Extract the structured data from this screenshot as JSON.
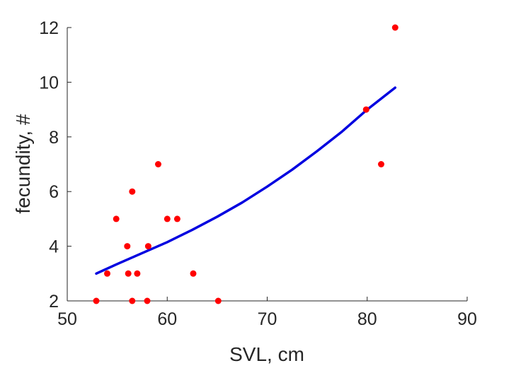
{
  "chart_data": {
    "type": "scatter",
    "title": "",
    "xlabel": "SVL, cm",
    "ylabel": "fecundity, #",
    "xlim": [
      50,
      90
    ],
    "ylim": [
      2,
      12
    ],
    "xticks": [
      50,
      60,
      70,
      80,
      90
    ],
    "yticks": [
      2,
      4,
      6,
      8,
      10,
      12
    ],
    "xtick_labels": [
      "50",
      "60",
      "70",
      "80",
      "90"
    ],
    "ytick_labels": [
      "2",
      "4",
      "6",
      "8",
      "10",
      "12"
    ],
    "grid": false,
    "series": [
      {
        "type": "scatter",
        "color": "#ff0000",
        "points": [
          {
            "x": 52.9,
            "y": 2
          },
          {
            "x": 54.0,
            "y": 3
          },
          {
            "x": 54.9,
            "y": 5
          },
          {
            "x": 56.0,
            "y": 4
          },
          {
            "x": 56.1,
            "y": 3
          },
          {
            "x": 56.5,
            "y": 6
          },
          {
            "x": 56.5,
            "y": 2
          },
          {
            "x": 57.0,
            "y": 3
          },
          {
            "x": 58.0,
            "y": 2
          },
          {
            "x": 58.1,
            "y": 4
          },
          {
            "x": 59.1,
            "y": 7
          },
          {
            "x": 60.0,
            "y": 5
          },
          {
            "x": 61.0,
            "y": 5
          },
          {
            "x": 62.6,
            "y": 3
          },
          {
            "x": 65.1,
            "y": 2
          },
          {
            "x": 79.9,
            "y": 9
          },
          {
            "x": 81.4,
            "y": 7
          },
          {
            "x": 82.8,
            "y": 12
          }
        ]
      },
      {
        "type": "line",
        "color": "#0000e0",
        "points": [
          {
            "x": 52.9,
            "y": 3.0
          },
          {
            "x": 55.0,
            "y": 3.35
          },
          {
            "x": 57.5,
            "y": 3.75
          },
          {
            "x": 60.0,
            "y": 4.15
          },
          {
            "x": 62.5,
            "y": 4.6
          },
          {
            "x": 65.0,
            "y": 5.08
          },
          {
            "x": 67.5,
            "y": 5.6
          },
          {
            "x": 70.0,
            "y": 6.18
          },
          {
            "x": 72.5,
            "y": 6.8
          },
          {
            "x": 75.0,
            "y": 7.48
          },
          {
            "x": 77.5,
            "y": 8.2
          },
          {
            "x": 80.0,
            "y": 9.0
          },
          {
            "x": 82.8,
            "y": 9.8
          }
        ]
      }
    ]
  }
}
